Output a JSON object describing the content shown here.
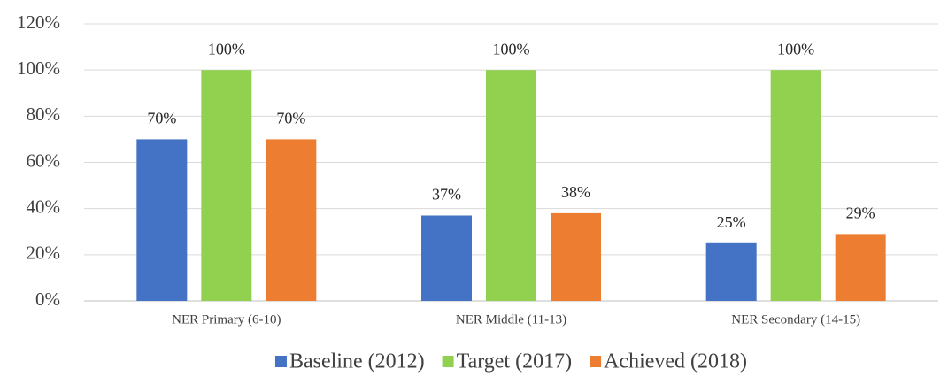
{
  "chart_data": {
    "type": "bar",
    "categories": [
      "NER Primary (6-10)",
      "NER Middle (11-13)",
      "NER Secondary (14-15)"
    ],
    "series": [
      {
        "name": "Baseline (2012)",
        "color": "#4472c4",
        "values": [
          70,
          37,
          25
        ],
        "value_labels": [
          "70%",
          "37%",
          "25%"
        ]
      },
      {
        "name": "Target (2017)",
        "color": "#92d050",
        "values": [
          100,
          100,
          100
        ],
        "value_labels": [
          "100%",
          "100%",
          "100%"
        ]
      },
      {
        "name": "Achieved (2018)",
        "color": "#ed7d31",
        "values": [
          70,
          38,
          29
        ],
        "value_labels": [
          "70%",
          "38%",
          "29%"
        ]
      }
    ],
    "ylim": [
      0,
      120
    ],
    "yticks": [
      {
        "value": 0,
        "label": "0%"
      },
      {
        "value": 20,
        "label": "20%"
      },
      {
        "value": 40,
        "label": "40%"
      },
      {
        "value": 60,
        "label": "60%"
      },
      {
        "value": 80,
        "label": "80%"
      },
      {
        "value": 100,
        "label": "100%"
      },
      {
        "value": 120,
        "label": "120%"
      }
    ],
    "grid": true,
    "legend": "bottom"
  }
}
